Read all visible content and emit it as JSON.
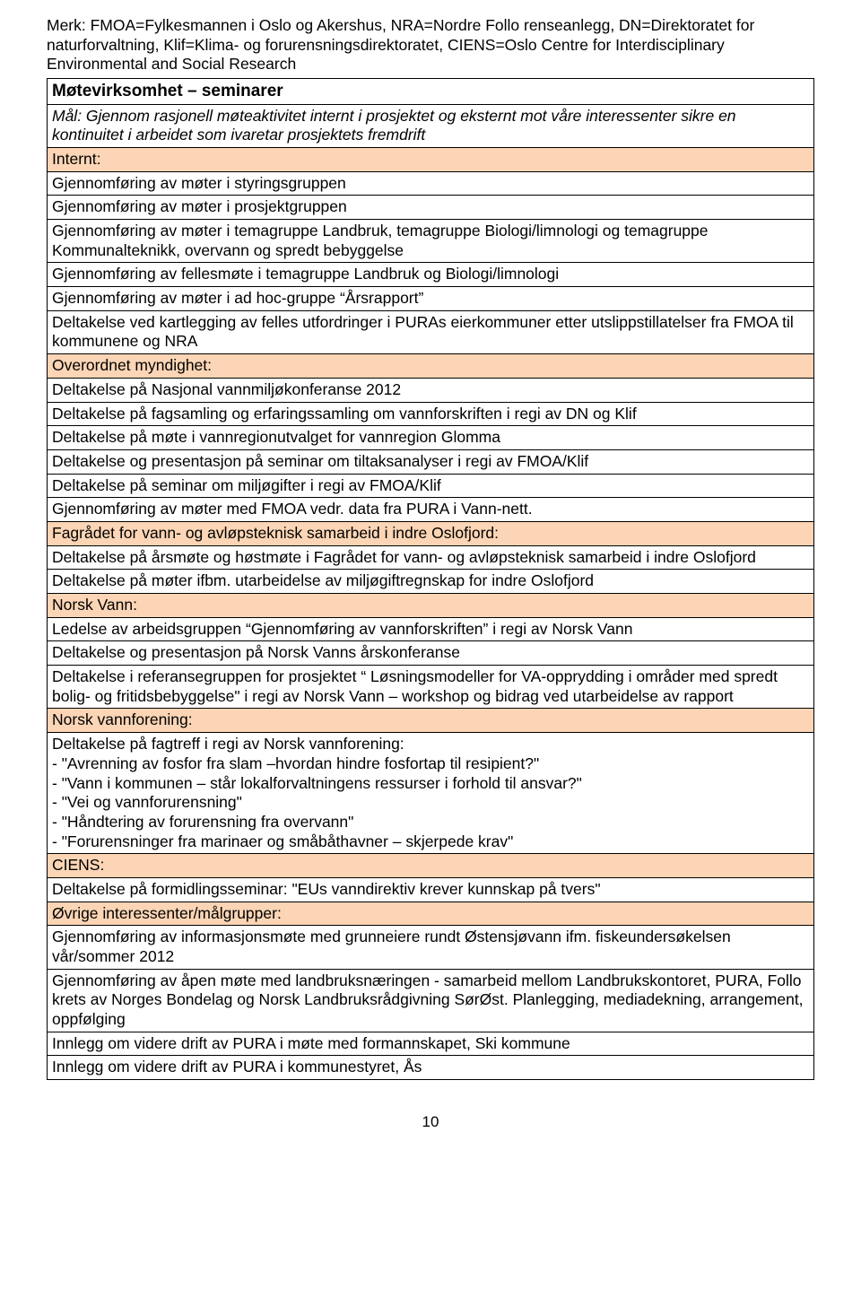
{
  "abbrev": "Merk: FMOA=Fylkesmannen i Oslo og Akershus, NRA=Nordre Follo renseanlegg, DN=Direktoratet for naturforvaltning, Klif=Klima- og forurensningsdirektoratet, CIENS=Oslo Centre for Interdisciplinary Environmental and Social Research",
  "table_title": "Møtevirksomhet – seminarer",
  "goal": "Mål: Gjennom rasjonell møteaktivitet internt i prosjektet og eksternt mot våre interessenter sikre en kontinuitet i arbeidet som ivaretar prosjektets fremdrift",
  "sections": [
    {
      "header": "Internt:",
      "rows": [
        "Gjennomføring av møter i styringsgruppen",
        "Gjennomføring av møter i prosjektgruppen",
        "Gjennomføring av møter i temagruppe Landbruk, temagruppe Biologi/limnologi og temagruppe Kommunalteknikk, overvann og spredt bebyggelse",
        "Gjennomføring av fellesmøte i temagruppe Landbruk og Biologi/limnologi",
        "Gjennomføring av møter i ad hoc-gruppe “Årsrapport”",
        "Deltakelse ved kartlegging av felles utfordringer i PURAs eierkommuner etter utslippstillatelser fra FMOA til kommunene og NRA"
      ]
    },
    {
      "header": "Overordnet myndighet:",
      "rows": [
        "Deltakelse på Nasjonal vannmiljøkonferanse 2012",
        "Deltakelse på fagsamling og erfaringssamling om vannforskriften i regi av DN og Klif",
        "Deltakelse på møte i vannregionutvalget for vannregion Glomma",
        "Deltakelse og presentasjon på seminar om tiltaksanalyser i regi av FMOA/Klif",
        "Deltakelse på seminar om miljøgifter i regi av FMOA/Klif",
        "Gjennomføring av møter med FMOA vedr. data fra PURA i Vann-nett."
      ]
    },
    {
      "header": "Fagrådet for vann- og avløpsteknisk samarbeid i indre Oslofjord:",
      "rows": [
        "Deltakelse på årsmøte og høstmøte i Fagrådet for vann- og avløpsteknisk samarbeid i indre Oslofjord",
        "Deltakelse på møter ifbm. utarbeidelse av miljøgiftregnskap for indre Oslofjord"
      ]
    },
    {
      "header": "Norsk Vann:",
      "rows": [
        "Ledelse av arbeidsgruppen “Gjennomføring av vannforskriften” i regi av Norsk Vann",
        "Deltakelse og presentasjon på Norsk Vanns årskonferanse",
        "Deltakelse i referansegruppen for prosjektet “ Løsningsmodeller for VA-opprydding i områder med spredt bolig- og fritidsbebyggelse\" i regi av Norsk Vann – workshop og bidrag ved utarbeidelse av rapport"
      ]
    },
    {
      "header": "Norsk vannforening:",
      "rows": [
        "Deltakelse på fagtreff i regi av Norsk vannforening:\n- \"Avrenning av fosfor fra slam –hvordan hindre fosfortap til resipient?\"\n- \"Vann i kommunen – står lokalforvaltningens ressurser i forhold til ansvar?\"\n- \"Vei og vannforurensning\"\n- \"Håndtering av forurensning fra overvann\"\n- \"Forurensninger fra marinaer og småbåthavner – skjerpede krav\""
      ]
    },
    {
      "header": "CIENS:",
      "rows": [
        "Deltakelse på formidlingsseminar: \"EUs vanndirektiv krever kunnskap på tvers\""
      ]
    },
    {
      "header": "Øvrige interessenter/målgrupper:",
      "rows": [
        "Gjennomføring av informasjonsmøte med grunneiere rundt Østensjøvann ifm. fiskeundersøkelsen vår/sommer 2012",
        "Gjennomføring av åpen møte med landbruksnæringen - samarbeid mellom Landbrukskontoret, PURA, Follo krets av Norges Bondelag og Norsk Landbruksrådgivning SørØst. Planlegging, mediadekning, arrangement, oppfølging",
        "Innlegg om videre drift av PURA i møte med formannskapet, Ski kommune",
        "Innlegg om videre drift av PURA i kommunestyret, Ås"
      ]
    }
  ],
  "page_number": "10",
  "colors": {
    "section_bg": "#fbd5b5",
    "border": "#000000",
    "text": "#000000",
    "background": "#ffffff"
  }
}
